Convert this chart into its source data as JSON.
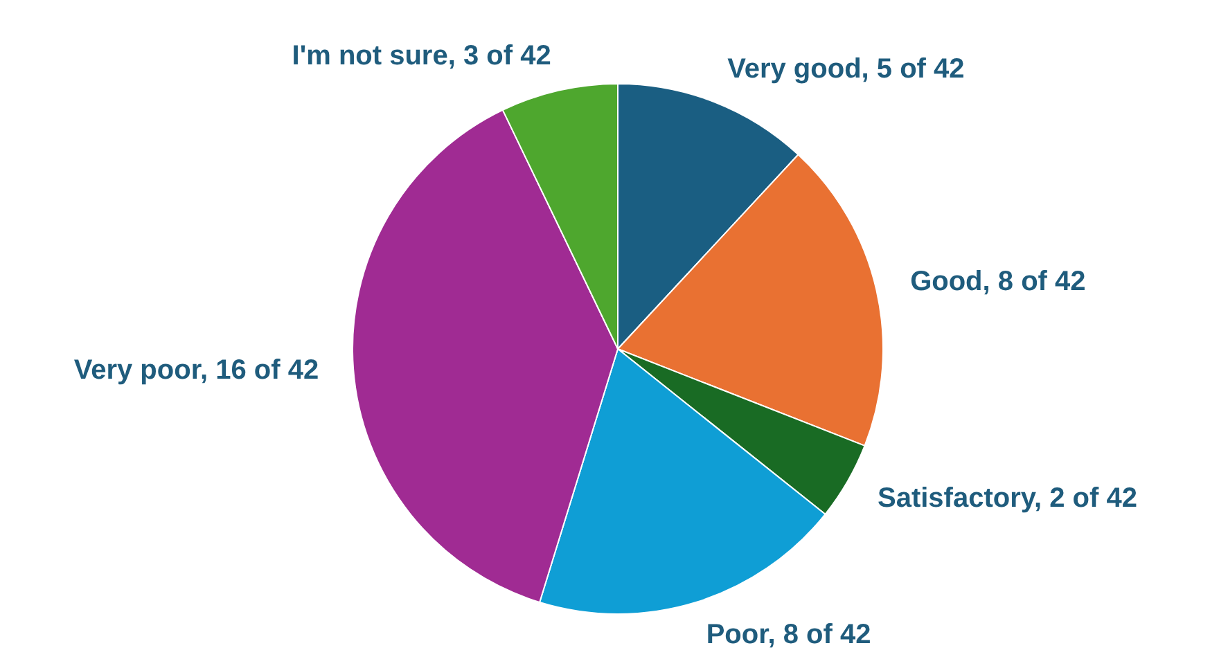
{
  "chart_data": {
    "type": "pie",
    "categories": [
      "Very good",
      "Good",
      "Satisfactory",
      "Poor",
      "Very poor",
      "I'm not sure"
    ],
    "values": [
      5,
      8,
      2,
      8,
      16,
      3
    ],
    "value_labels": [
      "5 of 42",
      "8 of 42",
      "2 of 42",
      "8 of 42",
      "16 of 42",
      "3 of 42"
    ],
    "colors": [
      "#1a5e82",
      "#e97132",
      "#196b24",
      "#0f9ed5",
      "#a02b93",
      "#4ea72e"
    ],
    "legend": false
  }
}
